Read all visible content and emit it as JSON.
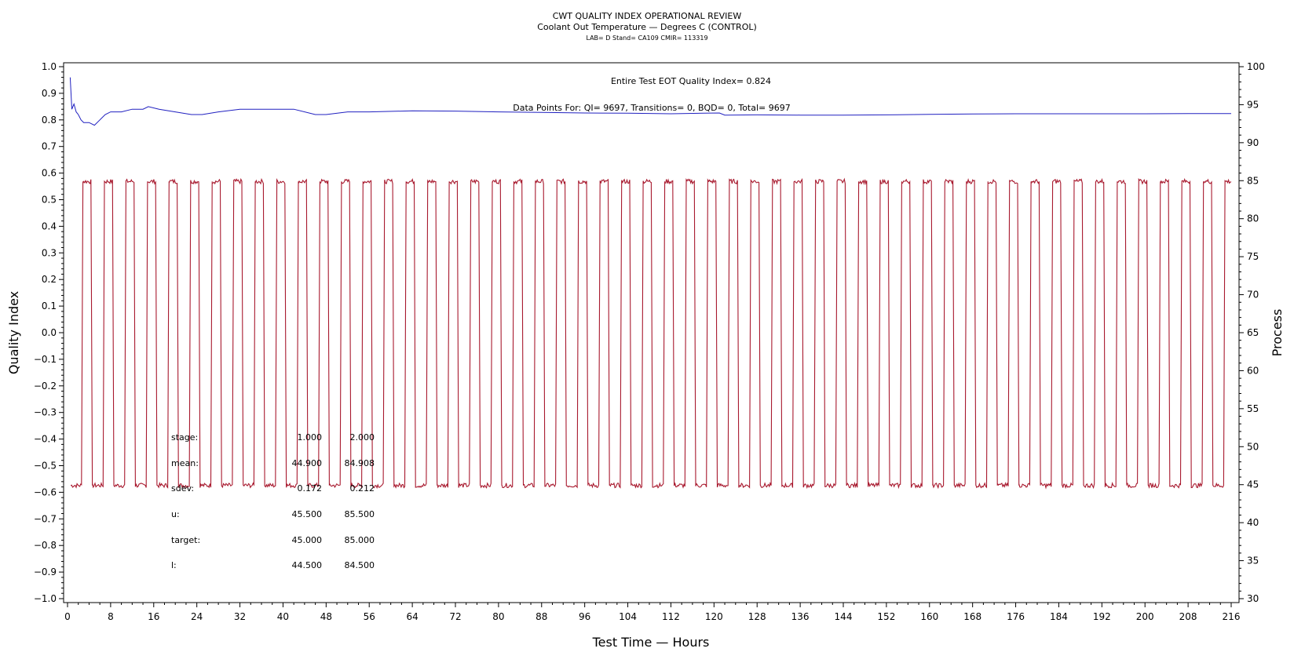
{
  "titles": {
    "line1": "CWT QUALITY INDEX OPERATIONAL REVIEW",
    "line2": "Coolant Out Temperature — Degrees C (CONTROL)",
    "line3": "LAB= D Stand= CA109 CMIR= 113319"
  },
  "annotations": {
    "eot": "Entire Test EOT Quality Index=   0.824",
    "datapoints": "Data Points For: QI=  9697, Transitions=     0, BQD=     0, Total=  9697"
  },
  "stats": {
    "columns": [
      "1.000",
      "2.000"
    ],
    "rows": [
      {
        "label": "stage:",
        "values": [
          "1.000",
          "2.000"
        ]
      },
      {
        "label": "mean:",
        "values": [
          "44.900",
          "84.908"
        ]
      },
      {
        "label": "sdev:",
        "values": [
          "0.172",
          "0.212"
        ]
      },
      {
        "label": "u:",
        "values": [
          "45.500",
          "85.500"
        ]
      },
      {
        "label": "target:",
        "values": [
          "45.000",
          "85.000"
        ]
      },
      {
        "label": "l:",
        "values": [
          "44.500",
          "84.500"
        ]
      }
    ]
  },
  "colors": {
    "quality_index": "#2020c0",
    "process": "#a8192e",
    "axis": "#000000"
  },
  "chart_data": {
    "type": "line",
    "title": "CWT QUALITY INDEX OPERATIONAL REVIEW",
    "subtitle": "Coolant Out Temperature — Degrees C (CONTROL)",
    "xlabel": "Test Time — Hours",
    "ylabel": "Quality Index",
    "y2label": "Process",
    "xlim": [
      0,
      216
    ],
    "ylim": [
      -1.0,
      1.0
    ],
    "y2lim": [
      30,
      100
    ],
    "xticks": [
      0,
      8,
      16,
      24,
      32,
      40,
      48,
      56,
      64,
      72,
      80,
      88,
      96,
      104,
      112,
      120,
      128,
      136,
      144,
      152,
      160,
      168,
      176,
      184,
      192,
      200,
      208,
      216
    ],
    "yticks": [
      -1.0,
      -0.9,
      -0.8,
      -0.7,
      -0.6,
      -0.5,
      -0.4,
      -0.3,
      -0.2,
      -0.1,
      0.0,
      0.1,
      0.2,
      0.3,
      0.4,
      0.5,
      0.6,
      0.7,
      0.8,
      0.9,
      1.0
    ],
    "y2ticks": [
      30,
      35,
      40,
      45,
      50,
      55,
      60,
      65,
      70,
      75,
      80,
      85,
      90,
      95,
      100
    ],
    "ytick_labels": [
      "−1.0",
      "−0.9",
      "−0.8",
      "−0.7",
      "−0.6",
      "−0.5",
      "−0.4",
      "−0.3",
      "−0.2",
      "−0.1",
      "0.0",
      "0.1",
      "0.2",
      "0.3",
      "0.4",
      "0.5",
      "0.6",
      "0.7",
      "0.8",
      "0.9",
      "1.0"
    ],
    "grid": false,
    "series": [
      {
        "axis": "left",
        "x": [
          0.5,
          0.8,
          1.2,
          1.6,
          2,
          2.5,
          3,
          4,
          5,
          6,
          7,
          8,
          10,
          12,
          14,
          15,
          17,
          20,
          23,
          25,
          28,
          32,
          36,
          40,
          42,
          46,
          48,
          52,
          56,
          64,
          72,
          80,
          88,
          96,
          104,
          112,
          118,
          121,
          122,
          128,
          136,
          144,
          152,
          160,
          168,
          176,
          184,
          192,
          200,
          208,
          216
        ],
        "values": [
          0.96,
          0.84,
          0.86,
          0.83,
          0.82,
          0.8,
          0.79,
          0.79,
          0.78,
          0.8,
          0.82,
          0.83,
          0.83,
          0.84,
          0.84,
          0.85,
          0.84,
          0.83,
          0.82,
          0.82,
          0.83,
          0.84,
          0.84,
          0.84,
          0.84,
          0.82,
          0.82,
          0.83,
          0.83,
          0.834,
          0.833,
          0.83,
          0.828,
          0.826,
          0.825,
          0.823,
          0.825,
          0.826,
          0.818,
          0.819,
          0.818,
          0.818,
          0.819,
          0.821,
          0.822,
          0.823,
          0.823,
          0.823,
          0.823,
          0.824,
          0.824
        ]
      },
      {
        "axis": "right",
        "cycle_hours": 4.0,
        "first_rise_hours": 2.6,
        "high_duration_hours": 1.5,
        "ramp_hours": 0.25,
        "low_value": 44.9,
        "high_value": 84.9,
        "start_hours": 0.6,
        "end_hours": 216
      }
    ]
  }
}
